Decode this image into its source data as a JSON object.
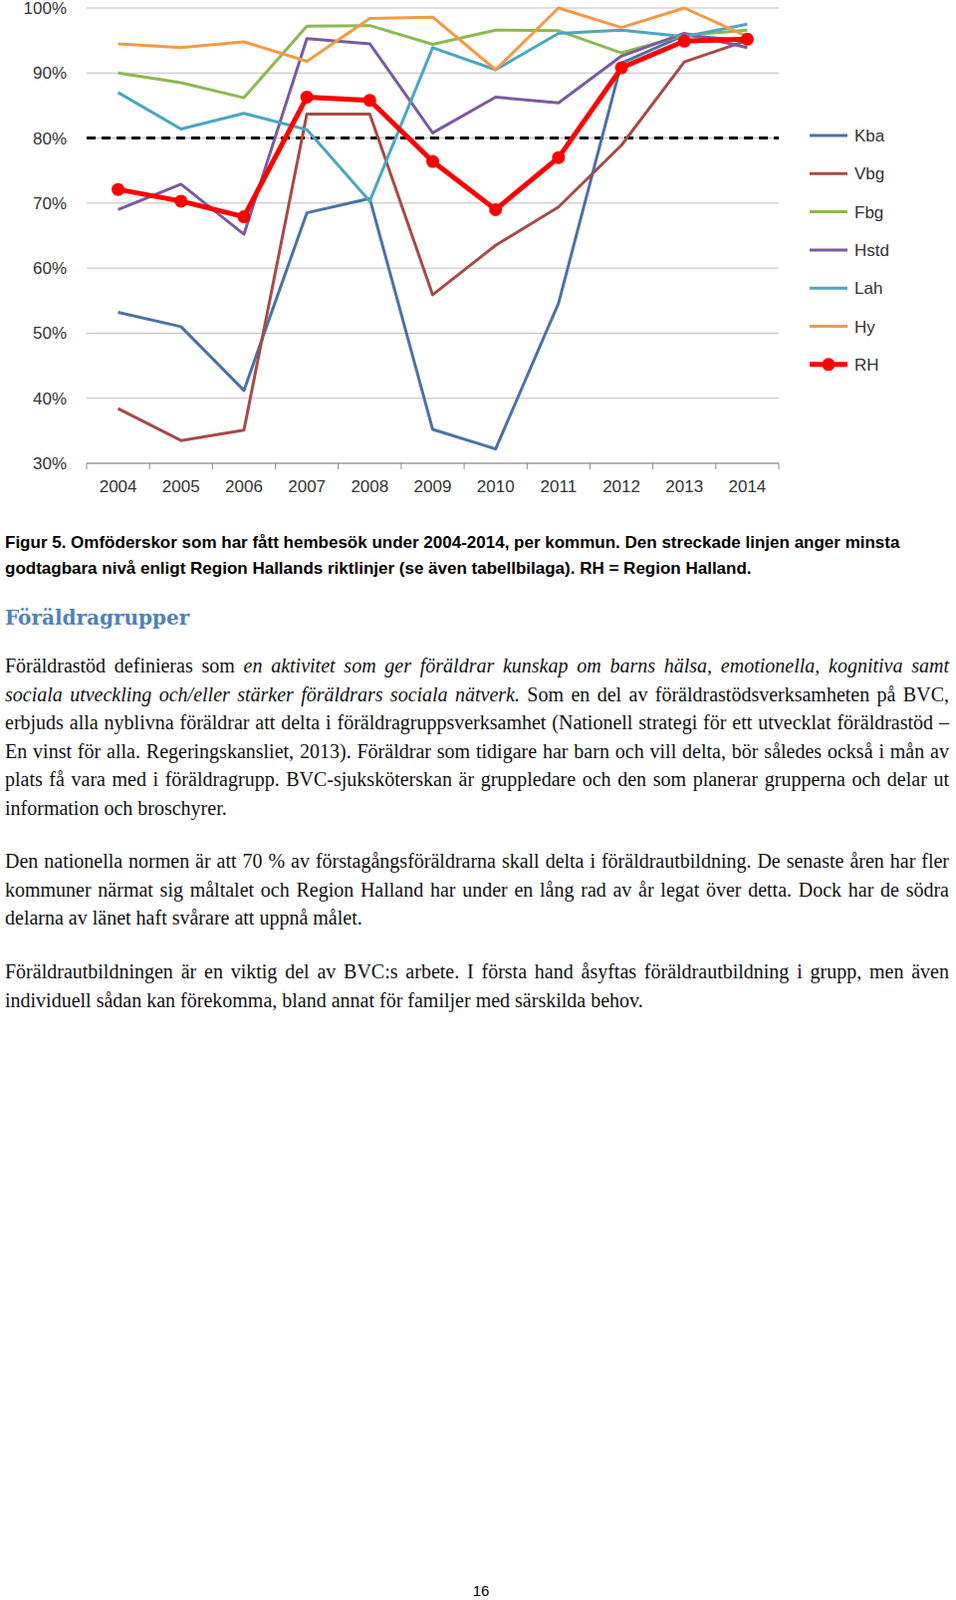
{
  "chart_data": {
    "type": "line",
    "categories": [
      "2004",
      "2005",
      "2006",
      "2007",
      "2008",
      "2009",
      "2010",
      "2011",
      "2012",
      "2013",
      "2014"
    ],
    "series": [
      {
        "name": "Kba",
        "color": "#4a72a6",
        "values": [
          53.2,
          51,
          41.2,
          68.5,
          70.7,
          35.2,
          32.2,
          54.6,
          91.5,
          95.8,
          95
        ]
      },
      {
        "name": "Vbg",
        "color": "#a64b48",
        "values": [
          38.4,
          33.5,
          35.1,
          83.7,
          83.7,
          55.9,
          63.5,
          69.4,
          78.9,
          91.7,
          95
        ]
      },
      {
        "name": "Fbg",
        "color": "#8db851",
        "values": [
          90,
          88.5,
          86.2,
          97.2,
          97.3,
          94.4,
          96.6,
          96.5,
          93.1,
          95.8,
          96.6
        ]
      },
      {
        "name": "Hstd",
        "color": "#7a5ba1",
        "values": [
          69,
          72.9,
          65.2,
          95.3,
          94.5,
          80.8,
          86.3,
          85.4,
          92.6,
          96.1,
          93.9
        ]
      },
      {
        "name": "Lah",
        "color": "#4ba7bf",
        "values": [
          87,
          81.4,
          83.8,
          81.3,
          70.3,
          93.9,
          90.5,
          96.1,
          96.6,
          95.6,
          97.5
        ]
      },
      {
        "name": "Hy",
        "color": "#f39a45",
        "values": [
          94.5,
          93.9,
          94.8,
          91.8,
          98.4,
          98.6,
          90.5,
          100,
          97,
          100,
          95.6
        ]
      },
      {
        "name": "RH",
        "color": "#ff0000",
        "marker": "circle",
        "values": [
          72.1,
          70.3,
          67.9,
          86.3,
          85.8,
          76.4,
          69,
          77,
          90.8,
          94.9,
          95.2
        ]
      }
    ],
    "threshold": 80,
    "ylim": [
      30,
      100
    ],
    "yticks": [
      {
        "value": 30,
        "label": "30%"
      },
      {
        "value": 40,
        "label": "40%"
      },
      {
        "value": 50,
        "label": "50%"
      },
      {
        "value": 60,
        "label": "60%"
      },
      {
        "value": 70,
        "label": "70%"
      },
      {
        "value": 80,
        "label": "80%"
      },
      {
        "value": 90,
        "label": "90%"
      },
      {
        "value": 100,
        "label": "100%"
      }
    ],
    "grid": true,
    "legend": "right"
  },
  "caption": "Figur 5. Omföderskor som har fått hembesök under 2004-2014, per kommun. Den streckade linjen anger minsta godtagbara nivå enligt Region Hallands riktlinjer (se även tabellbilaga). RH = Region Halland.",
  "section": {
    "heading": "Föräldragrupper",
    "paragraphs": [
      [
        {
          "text": "Föräldrastöd definieras som ",
          "italic": false
        },
        {
          "text": "en aktivitet som ger föräldrar kunskap om barns hälsa, emotionella, kognitiva samt sociala utveckling och/eller stärker föräldrars sociala nätverk.",
          "italic": true
        },
        {
          "text": " Som en del av föräldrastödsverksamheten på BVC, erbjuds alla nyblivna föräldrar att delta i föräldragruppsverksamhet (Nationell strategi för ett utvecklat föräldrastöd – En vinst för alla. Regeringskansliet, 2013). Föräldrar som tidigare har barn och vill delta, bör således också i mån av plats få vara med i föräldragrupp. BVC-sjuksköterskan är gruppledare och den som planerar grupperna och delar ut information och broschyrer.",
          "italic": false
        }
      ],
      [
        {
          "text": "Den nationella normen är att 70 % av förstagångsföräldrarna skall delta i föräldrautbildning. De senaste åren har fler kommuner närmat sig måltalet och Region Halland har under en lång rad av år legat över detta. Dock har de södra delarna av länet haft svårare att uppnå målet.",
          "italic": false
        }
      ],
      [
        {
          "text": "Föräldrautbildningen är en viktig del av BVC:s arbete. I första hand åsyftas föräldrautbildning i grupp, men även individuell sådan kan förekomma, bland annat för familjer med särskilda behov.",
          "italic": false
        }
      ]
    ]
  },
  "page_number": "16"
}
